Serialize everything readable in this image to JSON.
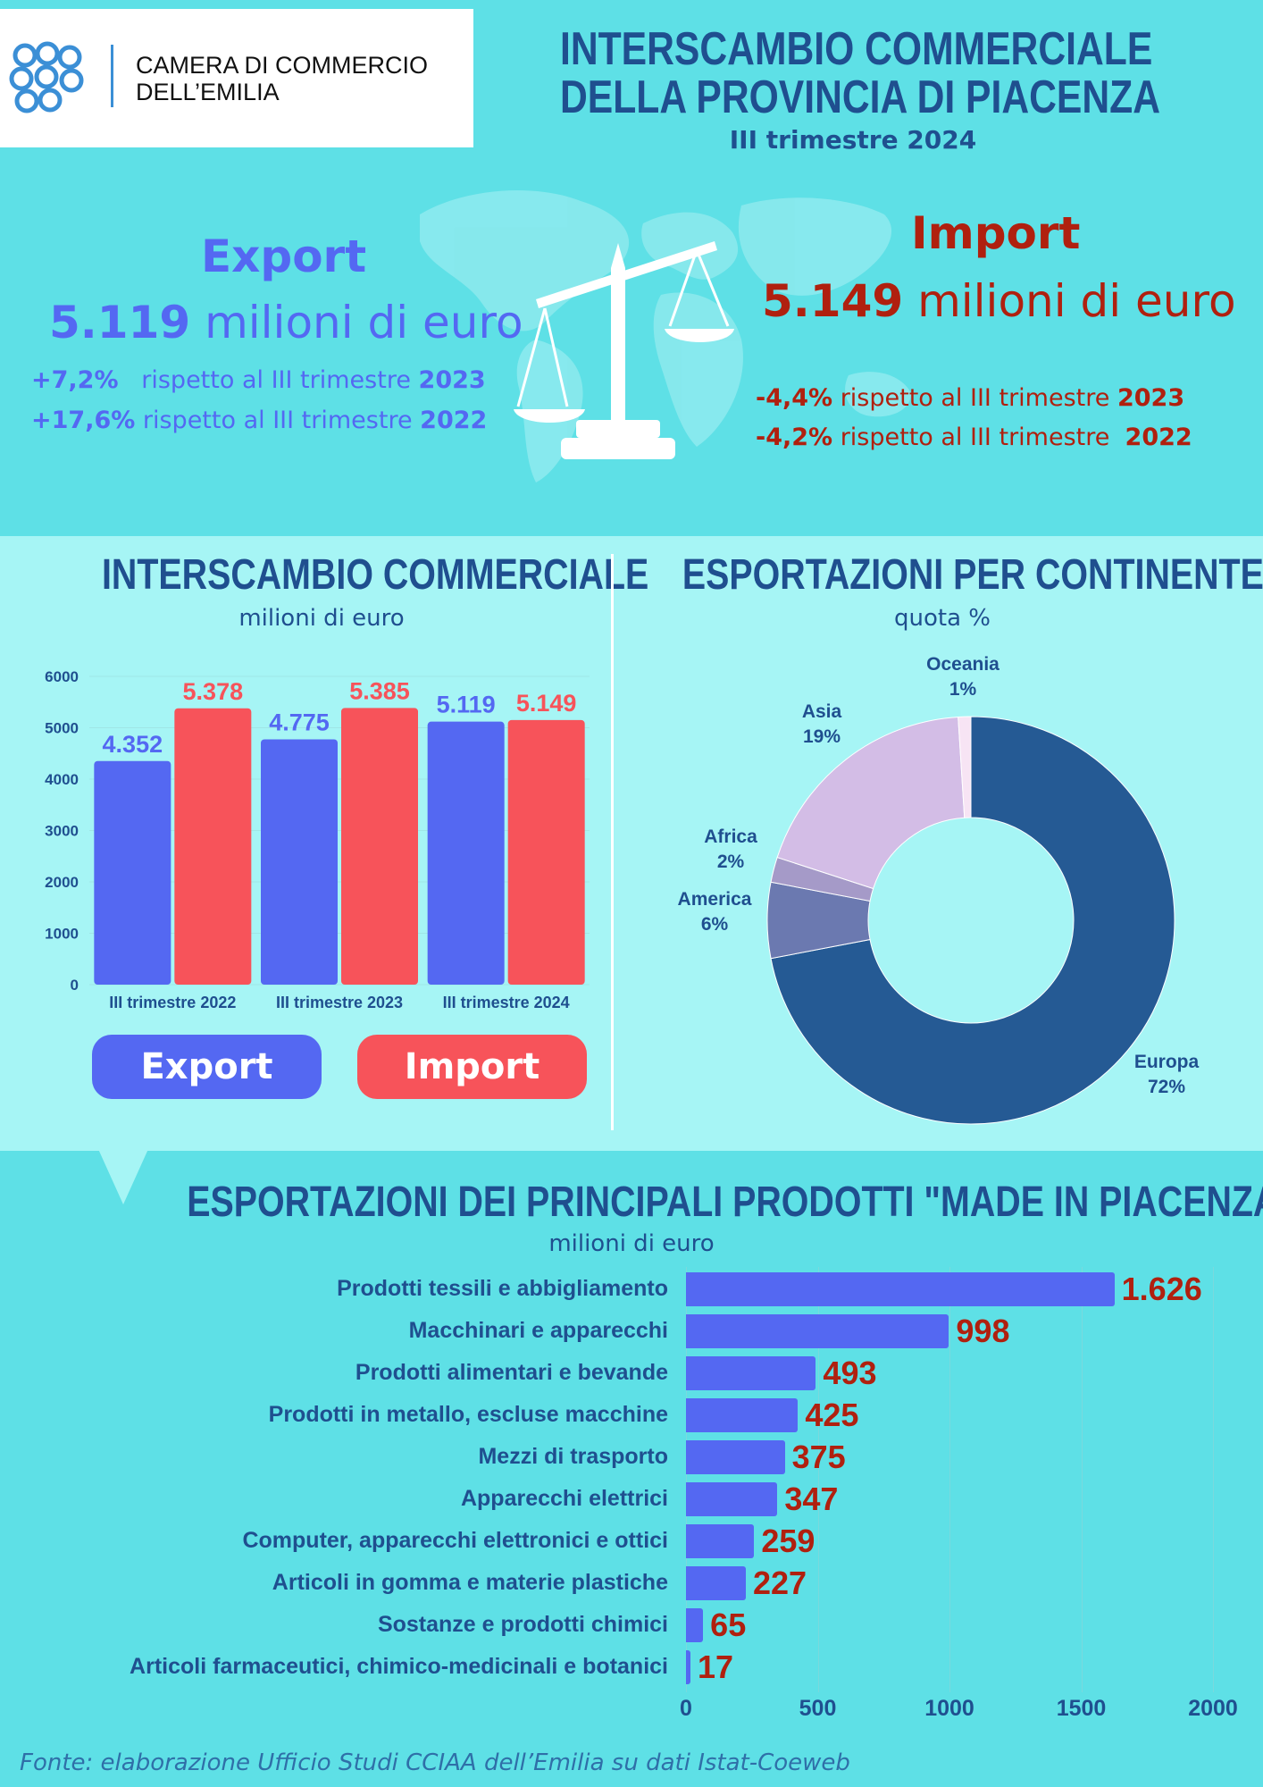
{
  "logo": {
    "line1": "CAMERA DI COMMERCIO",
    "line2": "DELL’EMILIA"
  },
  "header": {
    "title_line1": "INTERSCAMBIO COMMERCIALE",
    "title_line2": "DELLA PROVINCIA DI PIACENZA",
    "period": "III trimestre 2024"
  },
  "export_kpi": {
    "label": "Export",
    "value": "5.119",
    "unit": "milioni di euro",
    "change1": "+7,2%",
    "change1_text": "rispetto al III trimestre",
    "change1_year": "2023",
    "change2": "+17,6%",
    "change2_text": "rispetto al III trimestre",
    "change2_year": "2022"
  },
  "import_kpi": {
    "label": "Import",
    "value": "5.149",
    "unit": "milioni di euro",
    "change1": "-4,4%",
    "change1_text": "rispetto al III trimestre",
    "change1_year": "2023",
    "change2": "-4,2%",
    "change2_text": "rispetto al III trimestre",
    "change2_year": "2022"
  },
  "trade_panel": {
    "title": "INTERSCAMBIO COMMERCIALE",
    "subtitle": "milioni di euro"
  },
  "continent_panel": {
    "title": "ESPORTAZIONI PER CONTINENTE",
    "subtitle": "quota %"
  },
  "products_panel": {
    "title": "ESPORTAZIONI DEI PRINCIPALI PRODOTTI \"MADE IN PIACENZA\"",
    "subtitle": "milioni di euro"
  },
  "legend": {
    "export": "Export",
    "import": "Import"
  },
  "colors": {
    "export": "#5468f2",
    "import": "#f7535a",
    "europa": "#255a94",
    "america": "#6b79b0",
    "africa": "#a59ac8",
    "asia": "#d3bde6",
    "oceania": "#f7e4f4"
  },
  "chart_data": [
    {
      "type": "bar",
      "categories": [
        "III trimestre 2022",
        "III trimestre 2023",
        "III trimestre 2024"
      ],
      "series": [
        {
          "name": "Export",
          "values": [
            4352,
            4775,
            5119
          ],
          "labels": [
            "4.352",
            "4.775",
            "5.119"
          ]
        },
        {
          "name": "Import",
          "values": [
            5378,
            5385,
            5149
          ],
          "labels": [
            "5.378",
            "5.385",
            "5.149"
          ]
        }
      ],
      "ylim": [
        0,
        6000
      ],
      "yticks": [
        "0",
        "1000",
        "2000",
        "3000",
        "4000",
        "5000",
        "6000"
      ]
    },
    {
      "type": "pie",
      "slices": [
        {
          "name": "Europa",
          "label": "72%",
          "value": 72
        },
        {
          "name": "America",
          "label": "6%",
          "value": 6
        },
        {
          "name": "Africa",
          "label": "2%",
          "value": 2
        },
        {
          "name": "Asia",
          "label": "19%",
          "value": 19
        },
        {
          "name": "Oceania",
          "label": "1%",
          "value": 1
        }
      ]
    },
    {
      "type": "bar",
      "orientation": "horizontal",
      "categories": [
        "Prodotti tessili e abbigliamento",
        "Macchinari e apparecchi",
        "Prodotti alimentari e bevande",
        "Prodotti in metallo, escluse macchine",
        "Mezzi di trasporto",
        "Apparecchi elettrici",
        "Computer, apparecchi elettronici e ottici",
        "Articoli in gomma e materie plastiche",
        "Sostanze e prodotti chimici",
        "Articoli farmaceutici, chimico-medicinali e botanici"
      ],
      "values": [
        1626,
        998,
        493,
        425,
        375,
        347,
        259,
        227,
        65,
        17
      ],
      "labels": [
        "1.626",
        "998",
        "493",
        "425",
        "375",
        "347",
        "259",
        "227",
        "65",
        "17"
      ],
      "xlim": [
        0,
        2000
      ],
      "xticks": [
        "0",
        "500",
        "1000",
        "1500",
        "2000"
      ]
    }
  ],
  "footer": {
    "source": "Fonte: elaborazione Ufficio Studi CCIAA dell’Emilia su dati Istat-Coeweb"
  }
}
